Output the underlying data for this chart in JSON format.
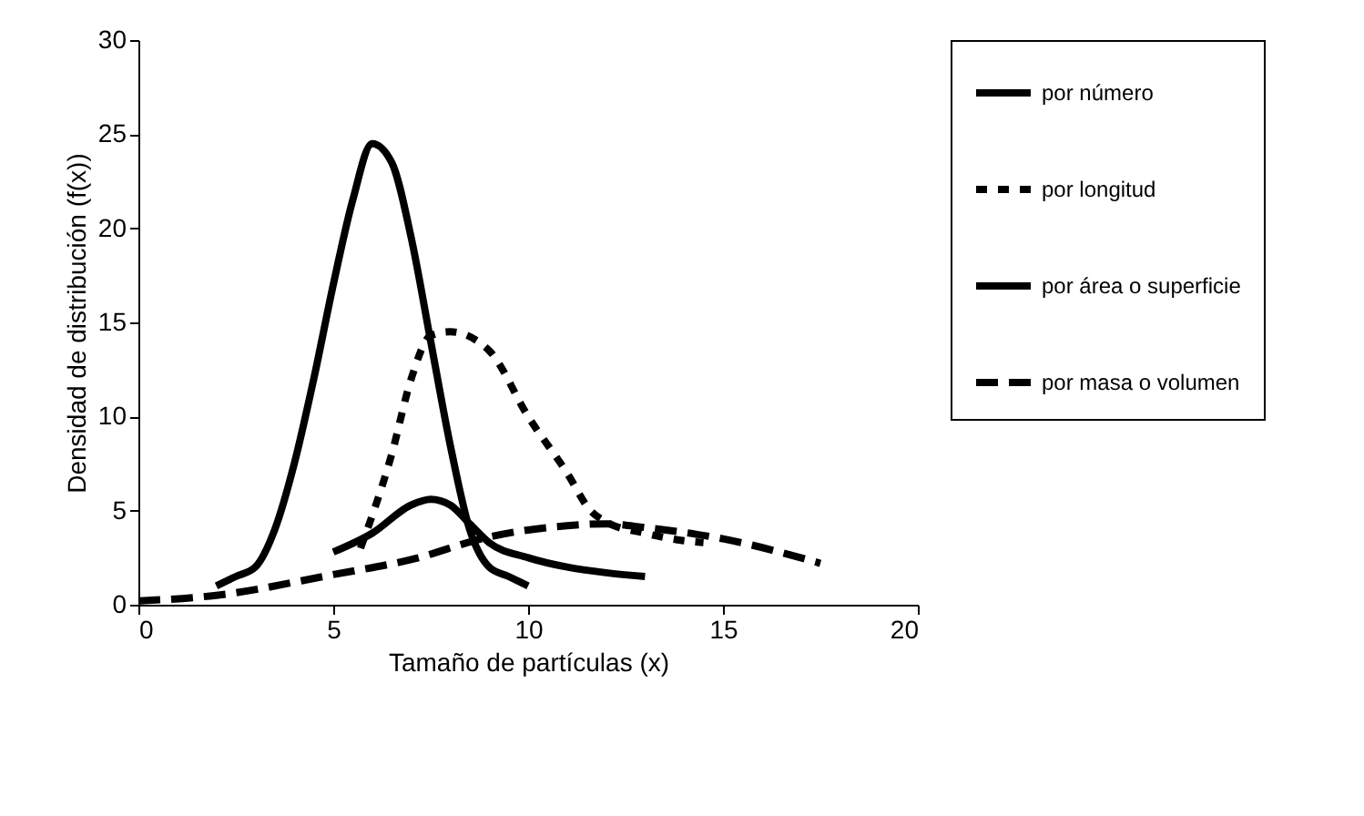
{
  "chart_data": {
    "type": "line",
    "xlabel": "Tamaño de partículas (x)",
    "ylabel": "Densidad de distribución (f(x))",
    "xlim": [
      0,
      20
    ],
    "xticks": [
      0,
      5,
      10,
      15,
      20
    ],
    "ylim": [
      0,
      30
    ],
    "yticks": [
      0,
      5,
      10,
      15,
      20,
      25,
      30
    ],
    "grid": false,
    "legend": "right",
    "marker": "none",
    "series": [
      {
        "name": "por número",
        "color": "#000000",
        "line_style": "solid",
        "x": [
          2,
          2.5,
          3,
          3.5,
          4,
          4.5,
          5,
          5.5,
          6,
          6.5,
          7,
          7.5,
          8,
          8.5,
          9,
          9.5,
          10
        ],
        "values": [
          1,
          1.5,
          2,
          4,
          7.5,
          12,
          17,
          21.5,
          24.5,
          23.5,
          19.5,
          14,
          8.5,
          4,
          2,
          1.5,
          1
        ]
      },
      {
        "name": "por longitud",
        "color": "#000000",
        "line_style": "dotted",
        "x": [
          5.7,
          6.5,
          7,
          7.5,
          8,
          9,
          10,
          11,
          11.6,
          12,
          13,
          14,
          14.5
        ],
        "values": [
          3,
          8,
          12,
          14.3,
          14.5,
          13.5,
          10,
          7,
          5,
          4.4,
          3.8,
          3.4,
          3.3
        ]
      },
      {
        "name": "por área o superficie",
        "color": "#000000",
        "line_style": "solid",
        "x": [
          5,
          6,
          7,
          7.5,
          8,
          8.5,
          9,
          10,
          11,
          12,
          13
        ],
        "values": [
          2.8,
          3.8,
          5.3,
          5.6,
          5.3,
          4.3,
          3.3,
          2.5,
          2,
          1.7,
          1.5
        ]
      },
      {
        "name": "por masa o volumen",
        "color": "#000000",
        "line_style": "dashed",
        "x": [
          0,
          2,
          5,
          7,
          9,
          11,
          12,
          13,
          15,
          17.5
        ],
        "values": [
          0.2,
          0.5,
          1.6,
          2.4,
          3.6,
          4.2,
          4.3,
          4.1,
          3.5,
          2.2
        ]
      }
    ]
  }
}
